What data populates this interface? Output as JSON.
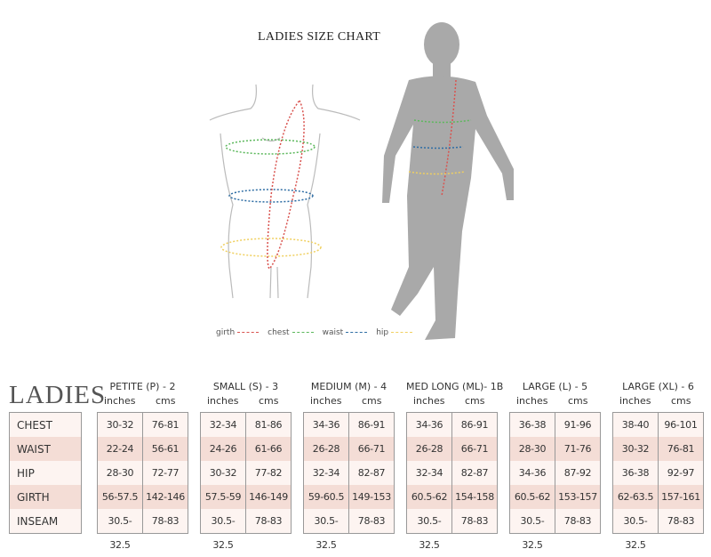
{
  "title": "LADIES SIZE CHART",
  "legend": [
    {
      "label": "girth",
      "color": "#d9534f"
    },
    {
      "label": "chest",
      "color": "#5cb85c"
    },
    {
      "label": "waist",
      "color": "#2e6da4"
    },
    {
      "label": "hip",
      "color": "#f0d060"
    }
  ],
  "table": {
    "heading": "LADIES",
    "row_labels": [
      "CHEST",
      "WAIST",
      "HIP",
      "GIRTH",
      "INSEAM"
    ],
    "unit_labels": [
      "inches",
      "cms"
    ],
    "sizes": [
      {
        "name": "PETITE (P) - 2",
        "rows": [
          [
            "30-32",
            "76-81"
          ],
          [
            "22-24",
            "56-61"
          ],
          [
            "28-30",
            "72-77"
          ],
          [
            "56-57.5",
            "142-146"
          ],
          [
            "30.5-32.5",
            "78-83"
          ]
        ]
      },
      {
        "name": "SMALL (S) - 3",
        "rows": [
          [
            "32-34",
            "81-86"
          ],
          [
            "24-26",
            "61-66"
          ],
          [
            "30-32",
            "77-82"
          ],
          [
            "57.5-59",
            "146-149"
          ],
          [
            "30.5-32.5",
            "78-83"
          ]
        ]
      },
      {
        "name": "MEDIUM (M) - 4",
        "rows": [
          [
            "34-36",
            "86-91"
          ],
          [
            "26-28",
            "66-71"
          ],
          [
            "32-34",
            "82-87"
          ],
          [
            "59-60.5",
            "149-153"
          ],
          [
            "30.5-32.5",
            "78-83"
          ]
        ]
      },
      {
        "name": "MED LONG (ML)- 1B",
        "rows": [
          [
            "34-36",
            "86-91"
          ],
          [
            "26-28",
            "66-71"
          ],
          [
            "32-34",
            "82-87"
          ],
          [
            "60.5-62",
            "154-158"
          ],
          [
            "30.5-32.5",
            "78-83"
          ]
        ]
      },
      {
        "name": "LARGE (L) - 5",
        "rows": [
          [
            "36-38",
            "91-96"
          ],
          [
            "28-30",
            "71-76"
          ],
          [
            "34-36",
            "87-92"
          ],
          [
            "60.5-62",
            "153-157"
          ],
          [
            "30.5-32.5",
            "78-83"
          ]
        ]
      },
      {
        "name": "LARGE (XL) - 6",
        "rows": [
          [
            "38-40",
            "96-101"
          ],
          [
            "30-32",
            "76-81"
          ],
          [
            "36-38",
            "92-97"
          ],
          [
            "62-63.5",
            "157-161"
          ],
          [
            "30.5-32.5",
            "78-83"
          ]
        ]
      }
    ]
  }
}
